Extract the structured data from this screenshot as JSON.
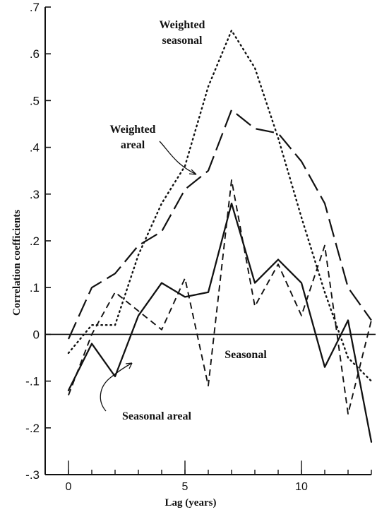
{
  "chart_data": {
    "type": "line",
    "xlabel": "Lag (years)",
    "ylabel": "Correlation coefficients",
    "xlim": [
      -1,
      13
    ],
    "ylim": [
      -0.3,
      0.7
    ],
    "x_ticks": [
      0,
      5,
      10
    ],
    "x_tick_labels": [
      "0",
      "5",
      "10"
    ],
    "y_ticks": [
      -0.3,
      -0.2,
      -0.1,
      0,
      0.1,
      0.2,
      0.3,
      0.4,
      0.5,
      0.6,
      0.7
    ],
    "y_tick_labels": [
      "-.3",
      "-.2",
      "-.1",
      "0",
      ".1",
      ".2",
      ".3",
      ".4",
      ".5",
      ".6",
      ".7"
    ],
    "zero_line": true,
    "grid": false,
    "series": [
      {
        "name": "Weighted seasonal",
        "style": "dotted",
        "x": [
          0,
          1,
          2,
          3,
          4,
          5,
          6,
          7,
          8,
          9,
          10,
          11,
          12,
          13
        ],
        "values": [
          -0.04,
          0.02,
          0.02,
          0.17,
          0.28,
          0.36,
          0.53,
          0.65,
          0.57,
          0.42,
          0.25,
          0.09,
          -0.05,
          -0.1
        ]
      },
      {
        "name": "Weighted areal",
        "style": "long-dash",
        "x": [
          0,
          1,
          2,
          3,
          4,
          5,
          6,
          7,
          8,
          9,
          10,
          11,
          12,
          13
        ],
        "values": [
          -0.01,
          0.1,
          0.13,
          0.19,
          0.22,
          0.31,
          0.35,
          0.48,
          0.44,
          0.43,
          0.37,
          0.28,
          0.1,
          0.03
        ]
      },
      {
        "name": "Seasonal",
        "style": "short-dash",
        "x": [
          0,
          1,
          2,
          3,
          4,
          5,
          6,
          7,
          8,
          9,
          10,
          11,
          12,
          13
        ],
        "values": [
          -0.13,
          0.0,
          0.09,
          0.05,
          0.01,
          0.12,
          -0.11,
          0.33,
          0.06,
          0.15,
          0.04,
          0.19,
          -0.17,
          0.03
        ]
      },
      {
        "name": "Seasonal areal",
        "style": "solid",
        "x": [
          0,
          1,
          2,
          3,
          4,
          5,
          6,
          7,
          8,
          9,
          10,
          11,
          12,
          13
        ],
        "values": [
          -0.12,
          -0.02,
          -0.09,
          0.04,
          0.11,
          0.08,
          0.09,
          0.28,
          0.11,
          0.16,
          0.11,
          -0.07,
          0.03,
          -0.23
        ]
      }
    ],
    "annotations": [
      {
        "id": "ws_line1",
        "text": "Weighted"
      },
      {
        "id": "ws_line2",
        "text": "seasonal"
      },
      {
        "id": "wa_line1",
        "text": "Weighted"
      },
      {
        "id": "wa_line2",
        "text": "areal"
      },
      {
        "id": "s_label",
        "text": "Seasonal"
      },
      {
        "id": "sa_label",
        "text": "Seasonal areal"
      }
    ]
  }
}
